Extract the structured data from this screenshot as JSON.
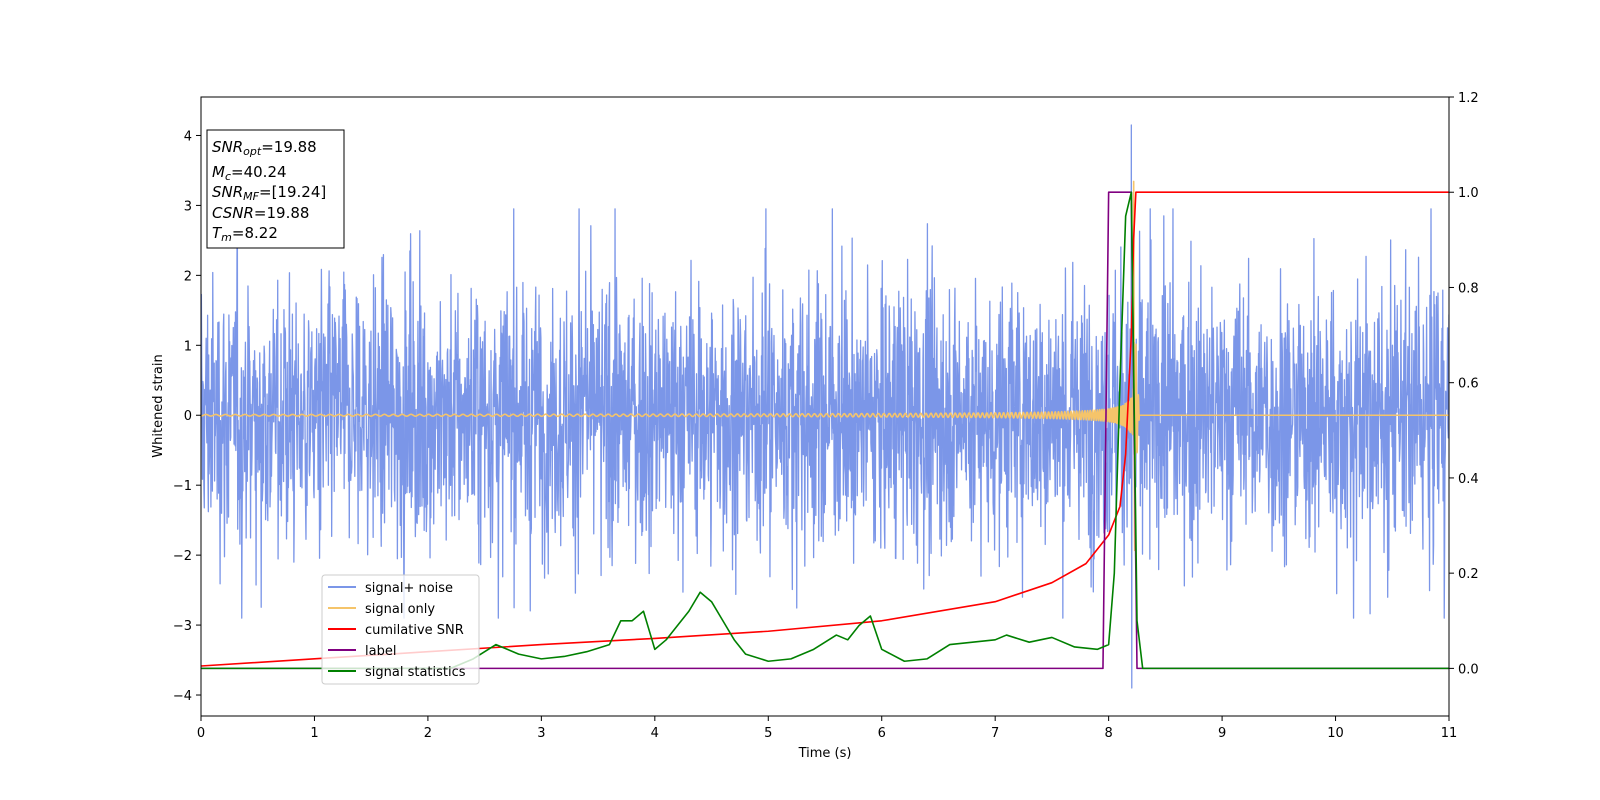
{
  "chart_data": {
    "type": "line",
    "title": "",
    "xlabel": "Time (s)",
    "ylabel": "Whitened strain",
    "xlim": [
      0,
      11
    ],
    "ylim": [
      -4.3,
      4.55
    ],
    "y2lim": [
      -0.1,
      1.2
    ],
    "grid": false,
    "legend_position": "lower-left",
    "x_ticks": [
      "0",
      "1",
      "2",
      "3",
      "4",
      "5",
      "6",
      "7",
      "8",
      "9",
      "10",
      "11"
    ],
    "y_ticks": [
      "−4",
      "−3",
      "−2",
      "−1",
      "0",
      "1",
      "2",
      "3",
      "4"
    ],
    "y2_ticks": [
      "0.0",
      "0.2",
      "0.4",
      "0.6",
      "0.8",
      "1.0",
      "1.2"
    ],
    "info_box": [
      {
        "base": "SNR",
        "sub": "opt",
        "value": "=19.88"
      },
      {
        "base": "M",
        "sub": "c",
        "value": "=40.24"
      },
      {
        "base": "SNR",
        "sub": "MF",
        "value": "=[19.24]"
      },
      {
        "base": "CSNR",
        "sub": "",
        "value": "=19.88"
      },
      {
        "base": "T",
        "sub": "m",
        "value": "=8.22"
      }
    ],
    "series": [
      {
        "name": "signal+ noise",
        "color": "#7b96e8",
        "axis": "left",
        "kind": "noise",
        "noise_sigma": 0.95,
        "burst_time": 8.2,
        "burst_max": 4.15,
        "burst_min": -3.9
      },
      {
        "name": "signal only",
        "color": "#f5c46a",
        "axis": "left",
        "kind": "chirp",
        "merger_time": 8.22,
        "peak_amplitude": 3.55
      },
      {
        "name": "cumilative SNR",
        "color": "#ff0000",
        "axis": "right",
        "x": [
          0,
          1,
          2,
          3,
          4,
          5,
          6,
          7,
          7.5,
          7.8,
          8.0,
          8.1,
          8.15,
          8.2,
          8.22,
          8.24,
          11
        ],
        "y": [
          0.005,
          0.02,
          0.035,
          0.05,
          0.063,
          0.078,
          0.1,
          0.14,
          0.18,
          0.22,
          0.28,
          0.34,
          0.45,
          0.7,
          0.9,
          1.0,
          1.0
        ]
      },
      {
        "name": "label",
        "color": "#800080",
        "axis": "right",
        "x": [
          0,
          7.95,
          8.0,
          8.2,
          8.25,
          11
        ],
        "y": [
          0,
          0,
          1.0,
          1.0,
          0,
          0
        ]
      },
      {
        "name": "signal statistics",
        "color": "#008000",
        "axis": "right",
        "x": [
          0,
          2.2,
          2.4,
          2.6,
          2.8,
          3.0,
          3.2,
          3.4,
          3.6,
          3.7,
          3.8,
          3.9,
          4.0,
          4.1,
          4.2,
          4.3,
          4.4,
          4.5,
          4.6,
          4.7,
          4.8,
          5.0,
          5.2,
          5.4,
          5.6,
          5.7,
          5.8,
          5.9,
          6.0,
          6.2,
          6.4,
          6.6,
          6.8,
          7.0,
          7.1,
          7.3,
          7.5,
          7.7,
          7.9,
          8.0,
          8.05,
          8.1,
          8.15,
          8.2,
          8.25,
          8.3,
          9.0,
          11
        ],
        "y": [
          0,
          0,
          0.02,
          0.05,
          0.03,
          0.02,
          0.025,
          0.035,
          0.05,
          0.1,
          0.1,
          0.12,
          0.04,
          0.06,
          0.09,
          0.12,
          0.16,
          0.14,
          0.1,
          0.06,
          0.03,
          0.015,
          0.02,
          0.04,
          0.07,
          0.06,
          0.09,
          0.11,
          0.04,
          0.015,
          0.02,
          0.05,
          0.055,
          0.06,
          0.07,
          0.055,
          0.065,
          0.045,
          0.04,
          0.05,
          0.2,
          0.6,
          0.95,
          1.0,
          0.1,
          0.0,
          0.0,
          0.0
        ]
      }
    ]
  }
}
